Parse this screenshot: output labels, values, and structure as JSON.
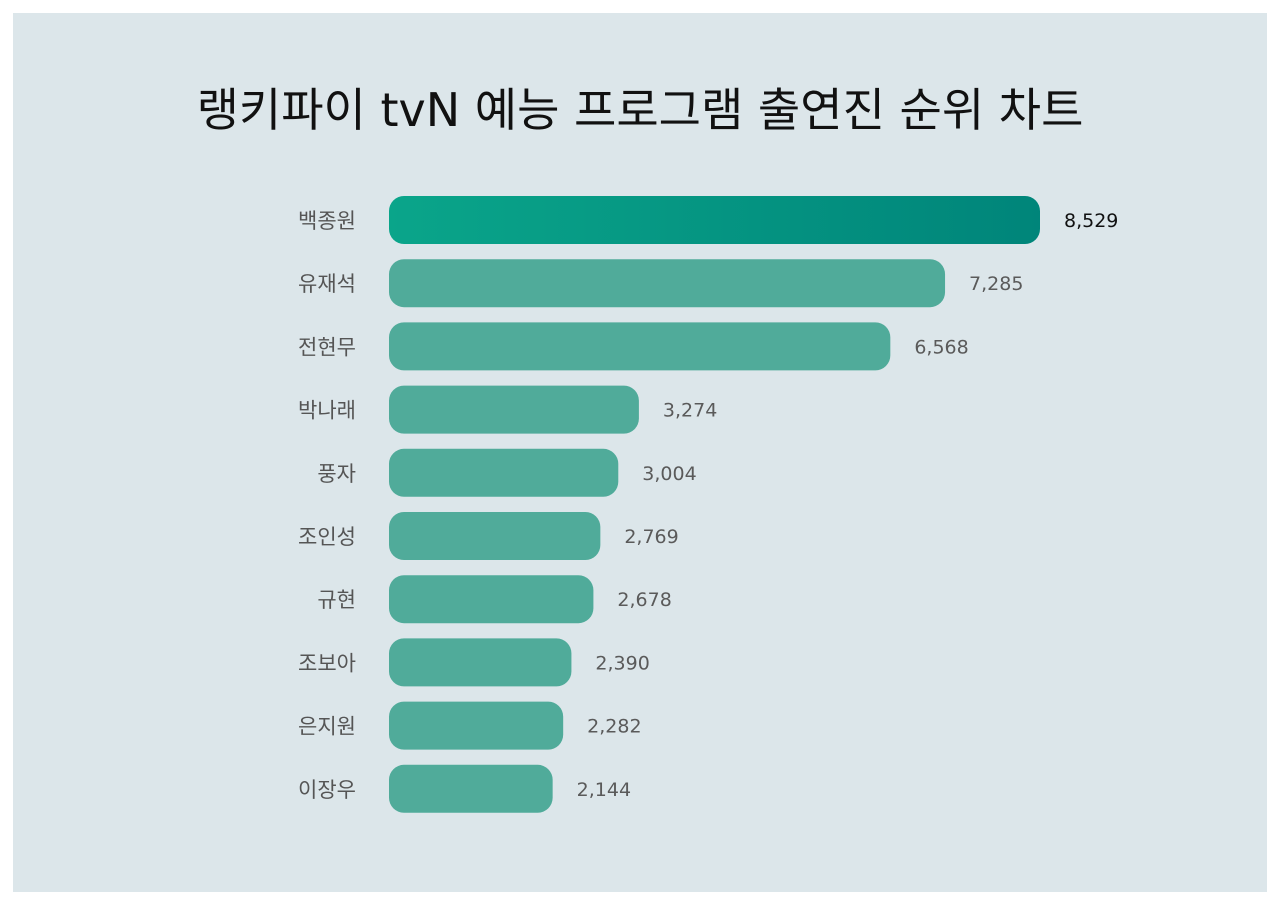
{
  "chart_data": {
    "type": "bar",
    "orientation": "horizontal",
    "title": "랭키파이 tvN 예능 프로그램 출연진 순위 차트",
    "categories": [
      "백종원",
      "유재석",
      "전현무",
      "박나래",
      "풍자",
      "조인성",
      "규현",
      "조보아",
      "은지원",
      "이장우"
    ],
    "values": [
      8529,
      7285,
      6568,
      3274,
      3004,
      2769,
      2678,
      2390,
      2282,
      2144
    ],
    "value_labels": [
      "8,529",
      "7,285",
      "6,568",
      "3,274",
      "3,004",
      "2,769",
      "2,678",
      "2,390",
      "2,282",
      "2,144"
    ],
    "xlim": [
      0,
      8529
    ],
    "grid": false,
    "legend": "none",
    "colors": {
      "top_bar_start": "#0aa58a",
      "top_bar_end": "#00857a",
      "bar": "#50ab9a",
      "background": "#dce6ea"
    }
  }
}
